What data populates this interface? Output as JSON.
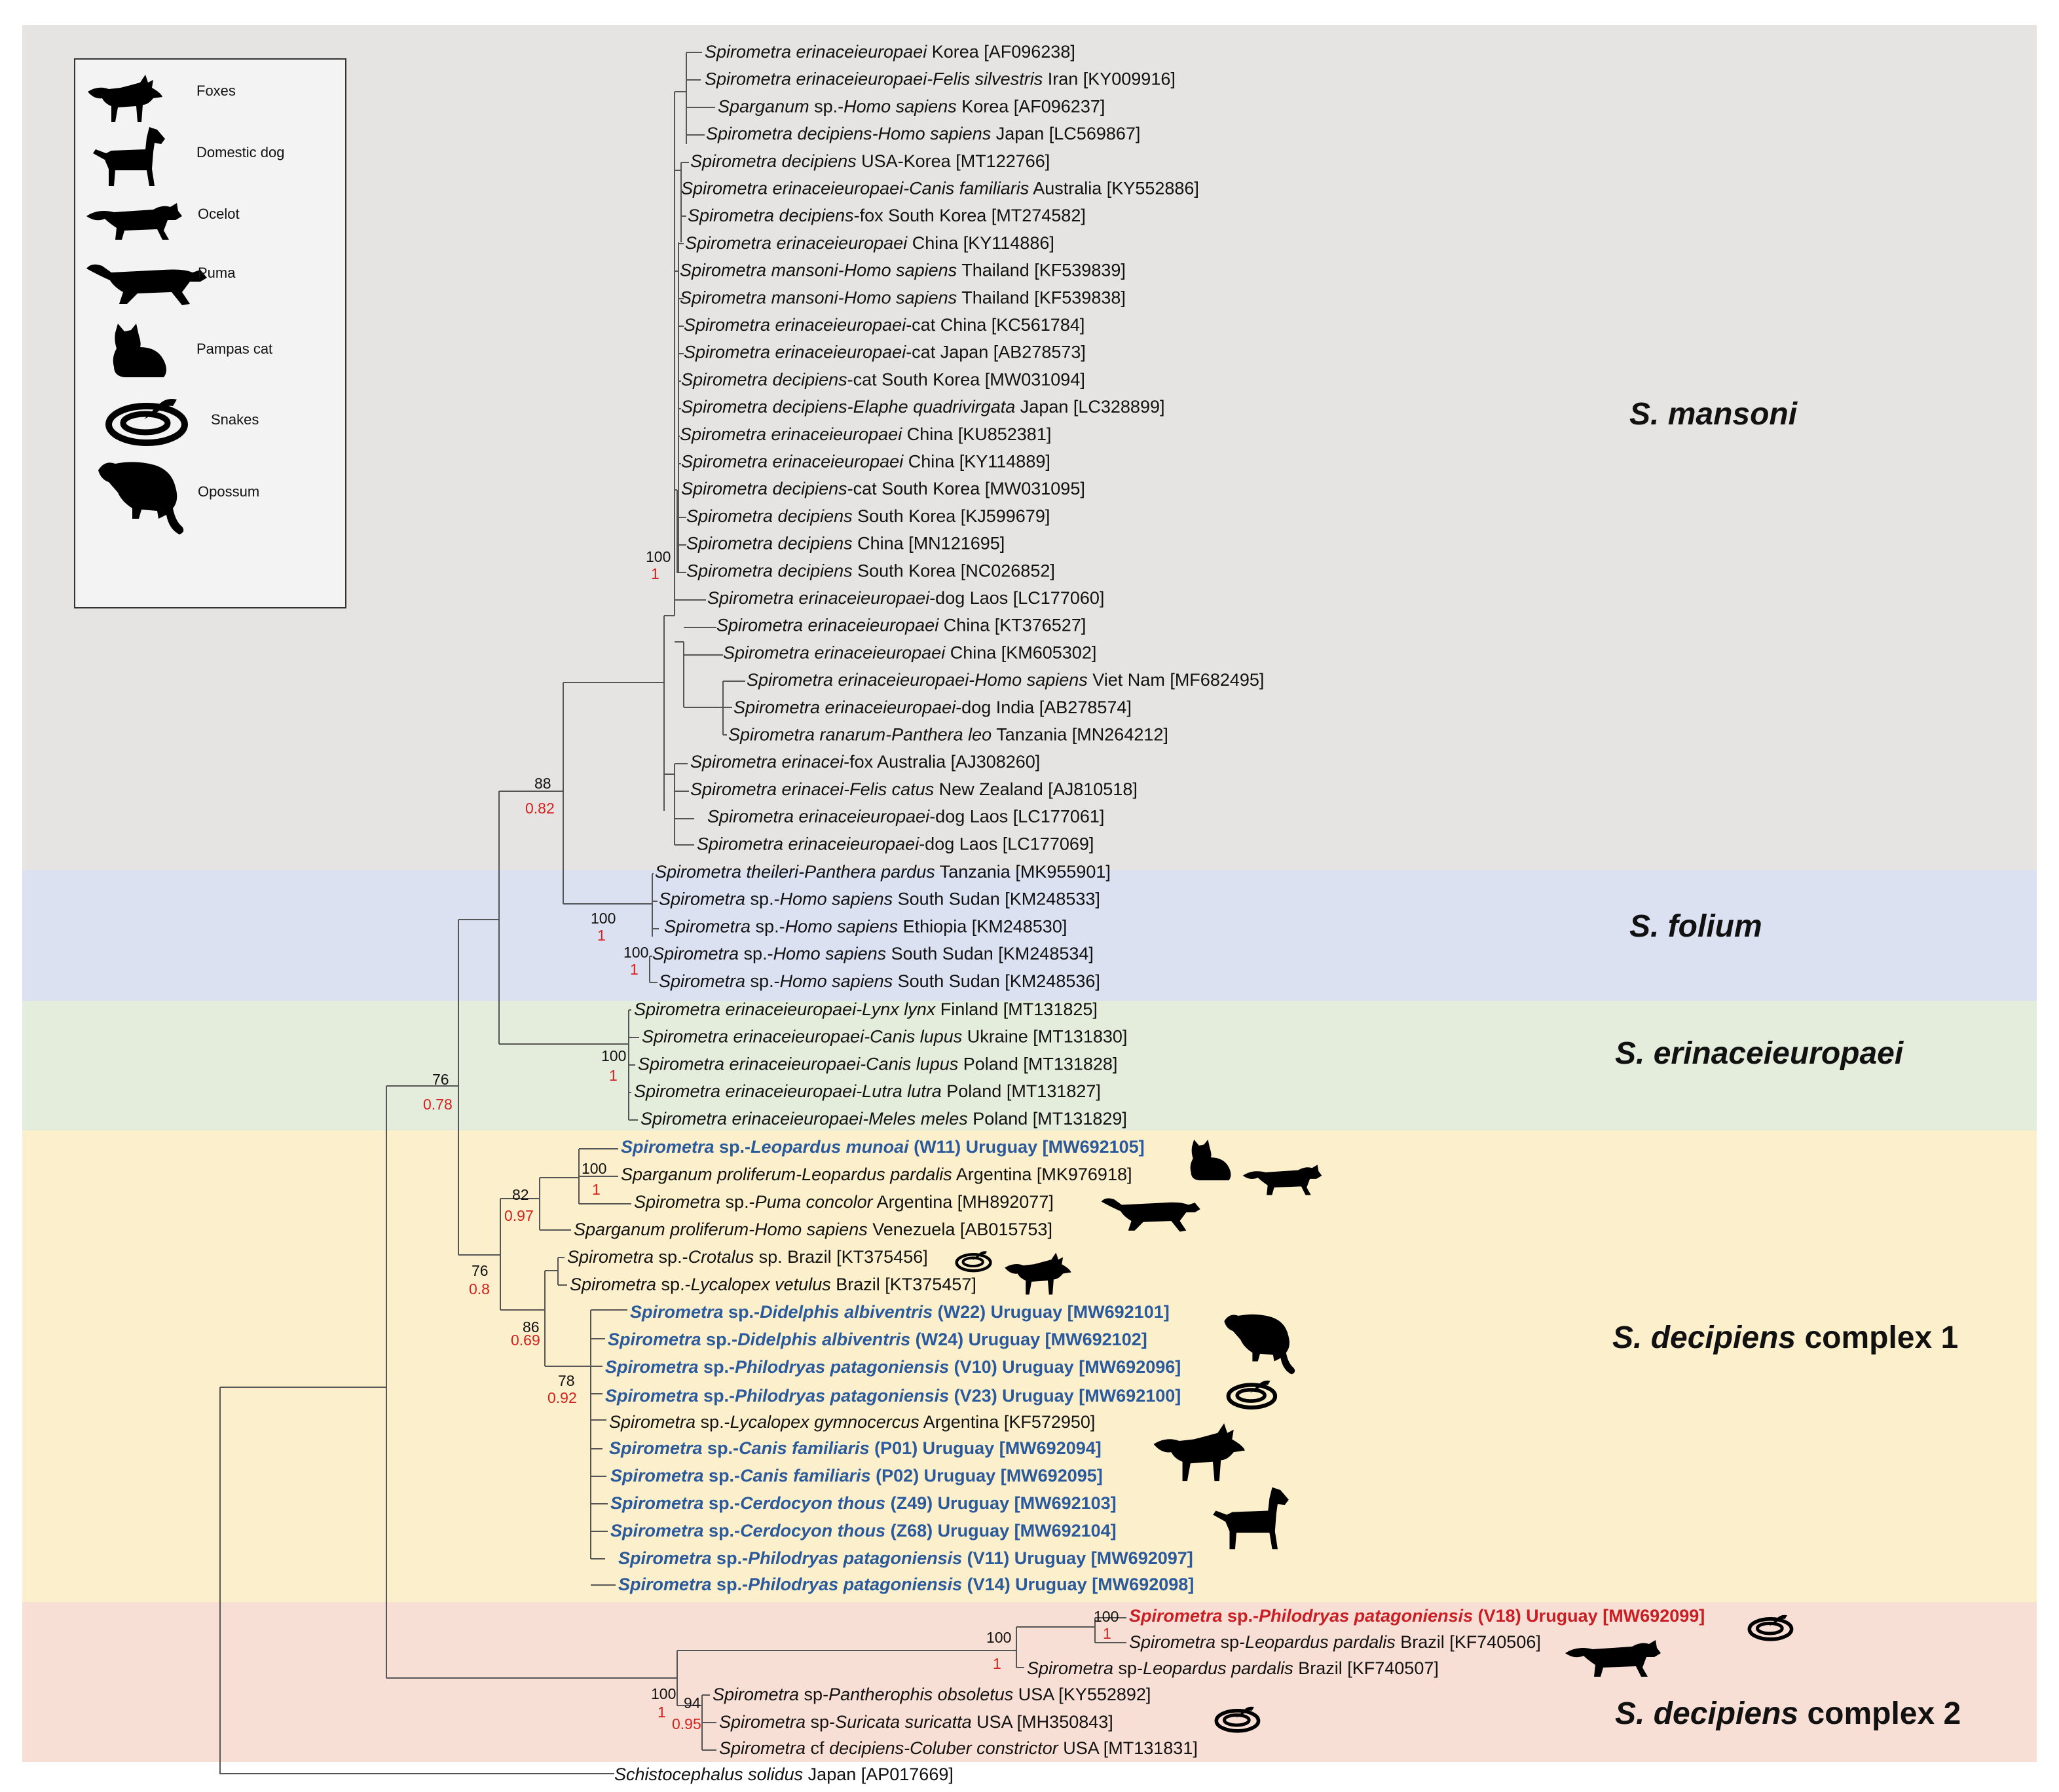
{
  "clades": [
    {
      "id": "mansoni",
      "name": "S. mansoni",
      "suffix": "",
      "color": "#e6e3e3"
    },
    {
      "id": "folium",
      "name": "S. folium",
      "suffix": "",
      "color": "#dbe1f0"
    },
    {
      "id": "erinaceieuropaei",
      "name": "S. erinaceieuropaei",
      "suffix": "",
      "color": "#e4eddb"
    },
    {
      "id": "decipiens1",
      "name": "S. decipiens",
      "suffix": " complex 1",
      "color": "#fcefcc"
    },
    {
      "id": "decipiens2",
      "name": "S. decipiens",
      "suffix": " complex 2",
      "color": "#f8dfd5"
    }
  ],
  "legend": {
    "items": [
      {
        "label": "Foxes",
        "icon": "fox-icon"
      },
      {
        "label": "Domestic dog",
        "icon": "dog-icon"
      },
      {
        "label": "Ocelot",
        "icon": "ocelot-icon"
      },
      {
        "label": "Puma",
        "icon": "puma-icon"
      },
      {
        "label": "Pampas cat",
        "icon": "pampas-cat-icon"
      },
      {
        "label": "Snakes",
        "icon": "snake-icon"
      },
      {
        "label": "Opossum",
        "icon": "opossum-icon"
      }
    ]
  },
  "leaves": [
    {
      "it": "Spirometra erinaceieuropaei",
      "rest": " Korea [AF096238]",
      "style": "normal"
    },
    {
      "it": "Spirometra erinaceieuropaei-Felis silvestris",
      "rest": " Iran [KY009916]",
      "style": "normal"
    },
    {
      "it": "Sparganum",
      "rest": " sp.-",
      "it2": "Homo sapiens",
      "rest2": " Korea [AF096237]",
      "style": "normal"
    },
    {
      "it": "Spirometra decipiens-Homo sapiens",
      "rest": " Japan [LC569867]",
      "style": "normal"
    },
    {
      "it": "Spirometra decipiens",
      "rest": " USA-Korea [MT122766]",
      "style": "normal"
    },
    {
      "it": "Spirometra erinaceieuropaei-Canis familiaris",
      "rest": " Australia [KY552886]",
      "style": "normal"
    },
    {
      "it": "Spirometra decipiens",
      "rest": "-fox South Korea [MT274582]",
      "style": "normal"
    },
    {
      "it": "Spirometra erinaceieuropaei",
      "rest": " China [KY114886]",
      "style": "normal"
    },
    {
      "it": "Spirometra mansoni-Homo sapiens",
      "rest": " Thailand [KF539839]",
      "style": "normal"
    },
    {
      "it": "Spirometra mansoni-Homo sapiens",
      "rest": " Thailand [KF539838]",
      "style": "normal"
    },
    {
      "it": "Spirometra erinaceieuropaei",
      "rest": "-cat China [KC561784]",
      "style": "normal"
    },
    {
      "it": "Spirometra erinaceieuropaei",
      "rest": "-cat Japan [AB278573]",
      "style": "normal"
    },
    {
      "it": "Spirometra decipiens",
      "rest": "-cat South Korea [MW031094]",
      "style": "normal"
    },
    {
      "it": "Spirometra decipiens-Elaphe quadrivirgata",
      "rest": " Japan [LC328899]",
      "style": "normal"
    },
    {
      "it": "Spirometra erinaceieuropaei",
      "rest": " China [KU852381]",
      "style": "normal"
    },
    {
      "it": "Spirometra erinaceieuropaei",
      "rest": " China [KY114889]",
      "style": "normal"
    },
    {
      "it": "Spirometra decipiens",
      "rest": "-cat South Korea [MW031095]",
      "style": "normal"
    },
    {
      "it": "Spirometra decipiens",
      "rest": " South Korea [KJ599679]",
      "style": "normal"
    },
    {
      "it": "Spirometra decipiens",
      "rest": " China [MN121695]",
      "style": "normal"
    },
    {
      "it": "Spirometra decipiens",
      "rest": " South Korea [NC026852]",
      "style": "normal"
    },
    {
      "it": "Spirometra erinaceieuropaei",
      "rest": "-dog Laos [LC177060]",
      "style": "normal"
    },
    {
      "it": "Spirometra erinaceieuropaei",
      "rest": " China [KT376527]",
      "style": "normal"
    },
    {
      "it": "Spirometra erinaceieuropaei",
      "rest": " China [KM605302]",
      "style": "normal"
    },
    {
      "it": "Spirometra erinaceieuropaei-Homo sapiens",
      "rest": " Viet Nam [MF682495]",
      "style": "normal"
    },
    {
      "it": "Spirometra erinaceieuropaei",
      "rest": "-dog India [AB278574]",
      "style": "normal"
    },
    {
      "it": "Spirometra ranarum-Panthera leo",
      "rest": " Tanzania [MN264212]",
      "style": "normal"
    },
    {
      "it": "Spirometra erinacei",
      "rest": "-fox Australia [AJ308260]",
      "style": "normal"
    },
    {
      "it": "Spirometra erinacei-Felis catus",
      "rest": " New Zealand [AJ810518]",
      "style": "normal"
    },
    {
      "it": "Spirometra erinaceieuropaei",
      "rest": "-dog Laos [LC177061]",
      "style": "normal"
    },
    {
      "it": "Spirometra erinaceieuropaei",
      "rest": "-dog Laos [LC177069]",
      "style": "normal"
    },
    {
      "it": "Spirometra theileri-Panthera pardus",
      "rest": " Tanzania [MK955901]",
      "style": "normal"
    },
    {
      "it": "Spirometra",
      "rest": " sp.-",
      "it2": "Homo sapiens",
      "rest2": " South Sudan [KM248533]",
      "style": "normal"
    },
    {
      "it": "Spirometra",
      "rest": " sp.-",
      "it2": "Homo sapiens",
      "rest2": " Ethiopia [KM248530]",
      "style": "normal"
    },
    {
      "it": "Spirometra",
      "rest": " sp.-",
      "it2": "Homo sapiens",
      "rest2": " South Sudan [KM248534]",
      "style": "normal"
    },
    {
      "it": "Spirometra",
      "rest": " sp.-",
      "it2": "Homo sapiens",
      "rest2": " South Sudan [KM248536]",
      "style": "normal"
    },
    {
      "it": "Spirometra erinaceieuropaei-Lynx lynx",
      "rest": " Finland [MT131825]",
      "style": "normal"
    },
    {
      "it": "Spirometra erinaceieuropaei-Canis lupus",
      "rest": " Ukraine [MT131830]",
      "style": "normal"
    },
    {
      "it": "Spirometra erinaceieuropaei-Canis lupus",
      "rest": " Poland [MT131828]",
      "style": "normal"
    },
    {
      "it": "Spirometra erinaceieuropaei-Lutra lutra",
      "rest": " Poland [MT131827]",
      "style": "normal"
    },
    {
      "it": "Spirometra erinaceieuropaei-Meles meles",
      "rest": " Poland [MT131829]",
      "style": "normal"
    },
    {
      "it": "Spirometra",
      "rest": " sp.-",
      "it2": "Leopardus munoai",
      "rest2": " (W11) Uruguay [MW692105]",
      "style": "blue"
    },
    {
      "it": "Sparganum proliferum-Leopardus pardalis",
      "rest": " Argentina [MK976918]",
      "style": "normal"
    },
    {
      "it": "Spirometra",
      "rest": " sp.-",
      "it2": "Puma concolor",
      "rest2": " Argentina [MH892077]",
      "style": "normal"
    },
    {
      "it": "Sparganum proliferum-Homo sapiens",
      "rest": " Venezuela [AB015753]",
      "style": "normal"
    },
    {
      "it": "Spirometra",
      "rest": " sp.-",
      "it2": "Crotalus",
      "rest2": " sp. Brazil [KT375456]",
      "style": "normal"
    },
    {
      "it": "Spirometra",
      "rest": " sp.-",
      "it2": "Lycalopex vetulus",
      "rest2": " Brazil [KT375457]",
      "style": "normal"
    },
    {
      "it": "Spirometra",
      "rest": " sp.-",
      "it2": "Didelphis albiventris",
      "rest2": " (W22) Uruguay [MW692101]",
      "style": "blue"
    },
    {
      "it": "Spirometra",
      "rest": " sp.-",
      "it2": "Didelphis albiventris",
      "rest2": " (W24) Uruguay [MW692102]",
      "style": "blue"
    },
    {
      "it": "Spirometra",
      "rest": " sp.-",
      "it2": "Philodryas patagoniensis",
      "rest2": " (V10) Uruguay [MW692096]",
      "style": "blue"
    },
    {
      "it": "Spirometra",
      "rest": " sp.-",
      "it2": "Philodryas patagoniensis",
      "rest2": " (V23) Uruguay [MW692100]",
      "style": "blue"
    },
    {
      "it": "Spirometra",
      "rest": " sp.-",
      "it2": "Lycalopex gymnocercus",
      "rest2": " Argentina [KF572950]",
      "style": "normal"
    },
    {
      "it": "Spirometra",
      "rest": " sp.-",
      "it2": "Canis familiaris",
      "rest2": " (P01) Uruguay [MW692094]",
      "style": "blue"
    },
    {
      "it": "Spirometra",
      "rest": " sp.-",
      "it2": "Canis familiaris",
      "rest2": " (P02) Uruguay [MW692095]",
      "style": "blue"
    },
    {
      "it": "Spirometra",
      "rest": " sp.-",
      "it2": "Cerdocyon thous",
      "rest2": " (Z49) Uruguay [MW692103]",
      "style": "blue"
    },
    {
      "it": "Spirometra",
      "rest": " sp.-",
      "it2": "Cerdocyon thous",
      "rest2": " (Z68) Uruguay [MW692104]",
      "style": "blue"
    },
    {
      "it": "Spirometra",
      "rest": " sp.-",
      "it2": "Philodryas patagoniensis",
      "rest2": " (V11) Uruguay [MW692097]",
      "style": "blue"
    },
    {
      "it": "Spirometra",
      "rest": " sp.-",
      "it2": "Philodryas patagoniensis",
      "rest2": " (V14) Uruguay [MW692098]",
      "style": "blue"
    },
    {
      "it": "Spirometra",
      "rest": " sp.-",
      "it2": "Philodryas patagoniensis",
      "rest2": " (V18) Uruguay [MW692099]",
      "style": "red"
    },
    {
      "it": "Spirometra",
      "rest": " sp-",
      "it2": "Leopardus pardalis",
      "rest2": " Brazil [KF740506]",
      "style": "normal"
    },
    {
      "it": "Spirometra",
      "rest": " sp-",
      "it2": "Leopardus pardalis",
      "rest2": " Brazil [KF740507]",
      "style": "normal"
    },
    {
      "it": "Spirometra",
      "rest": " sp-",
      "it2": "Pantherophis obsoletus",
      "rest2": " USA [KY552892]",
      "style": "normal"
    },
    {
      "it": "Spirometra",
      "rest": " sp-",
      "it2": "Suricata suricatta",
      "rest2": " USA [MH350843]",
      "style": "normal"
    },
    {
      "it": "Spirometra",
      "rest": " cf ",
      "it2": "decipiens-Coluber constrictor",
      "rest2": " USA [MT131831]",
      "style": "normal"
    },
    {
      "it": "Schistocephalus solidus",
      "rest": " Japan [AP017669]",
      "style": "normal"
    }
  ],
  "support_values": [
    {
      "id": "n_mansoni",
      "boot": "100",
      "pp": "1"
    },
    {
      "id": "n_mans_fol",
      "boot": "88",
      "pp": "0.82"
    },
    {
      "id": "n_folium",
      "boot": "100",
      "pp": "1"
    },
    {
      "id": "n_folium_sub",
      "boot": "100",
      "pp": "1"
    },
    {
      "id": "n_erin",
      "boot": "100",
      "pp": "1"
    },
    {
      "id": "n_root_in",
      "boot": "76",
      "pp": "0.78"
    },
    {
      "id": "n_dec1_a",
      "boot": "100",
      "pp": "1"
    },
    {
      "id": "n_dec1_b",
      "boot": "82",
      "pp": "0.97"
    },
    {
      "id": "n_dec1",
      "boot": "76",
      "pp": "0.8"
    },
    {
      "id": "n_dec1_c",
      "boot": "86",
      "pp": "0.69"
    },
    {
      "id": "n_dec1_d",
      "boot": "78",
      "pp": "0.92"
    },
    {
      "id": "n_dec2_a",
      "boot": "100",
      "pp": "1"
    },
    {
      "id": "n_dec2_b",
      "boot": "100",
      "pp": "1"
    },
    {
      "id": "n_dec2",
      "boot": "100",
      "pp": "1"
    },
    {
      "id": "n_dec2_c",
      "boot": "94",
      "pp": "0.95"
    }
  ]
}
